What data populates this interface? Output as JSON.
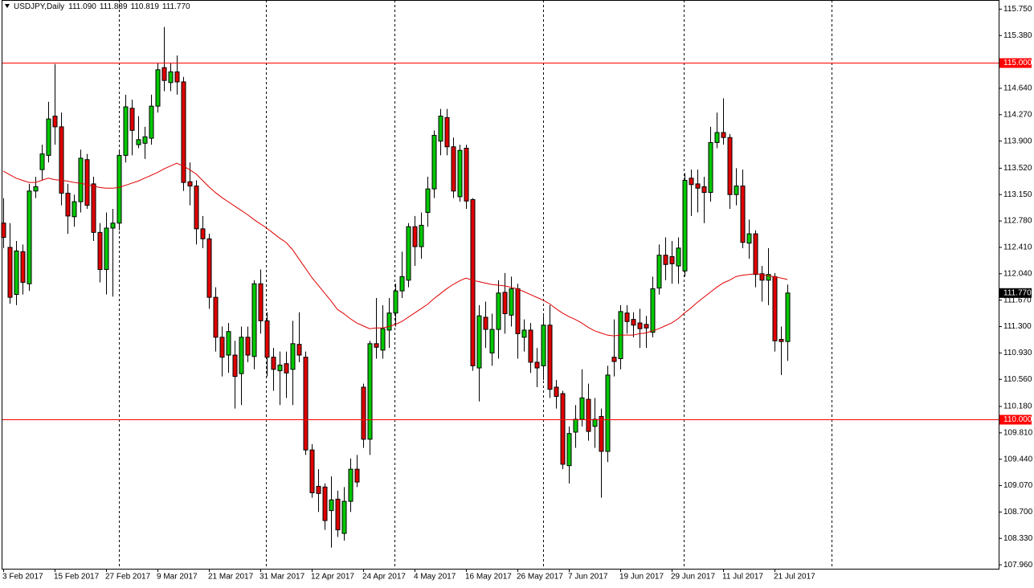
{
  "chart_data": {
    "type": "candlestick",
    "title": "USDJPY,Daily",
    "title_values": [
      "111.090",
      "111.889",
      "110.819",
      "111.770"
    ],
    "categories": [
      "3 Feb 2017",
      null,
      null,
      null,
      null,
      null,
      null,
      null,
      "15 Feb 2017",
      null,
      null,
      null,
      null,
      null,
      null,
      null,
      "27 Feb 2017",
      null,
      null,
      null,
      null,
      null,
      null,
      null,
      "9 Mar 2017",
      null,
      null,
      null,
      null,
      null,
      null,
      null,
      "21 Mar 2017",
      null,
      null,
      null,
      null,
      null,
      null,
      null,
      "31 Mar 2017",
      null,
      null,
      null,
      null,
      null,
      null,
      null,
      "12 Apr 2017",
      null,
      null,
      null,
      null,
      null,
      null,
      null,
      "24 Apr 2017",
      null,
      null,
      null,
      null,
      null,
      null,
      null,
      "4 May 2017",
      null,
      null,
      null,
      null,
      null,
      null,
      null,
      "16 May 2017",
      null,
      null,
      null,
      null,
      null,
      null,
      null,
      "26 May 2017",
      null,
      null,
      null,
      null,
      null,
      null,
      null,
      "7 Jun 2017",
      null,
      null,
      null,
      null,
      null,
      null,
      null,
      "19 Jun 2017",
      null,
      null,
      null,
      null,
      null,
      null,
      null,
      "29 Jun 2017",
      null,
      null,
      null,
      null,
      null,
      null,
      null,
      "11 Jul 2017",
      null,
      null,
      null,
      null,
      null,
      null,
      null,
      "21 Jul 2017",
      null,
      null
    ],
    "open": [
      112.75,
      112.41,
      111.75,
      112.35,
      111.9,
      113.2,
      113.5,
      113.7,
      114.25,
      114.1,
      113.17,
      112.84,
      113.05,
      113.64,
      113.3,
      112.62,
      112.1,
      112.68,
      112.75,
      113.7,
      114.36,
      113.85,
      113.87,
      113.94,
      114.39,
      114.93,
      114.72,
      114.87,
      114.73,
      113.33,
      113.27,
      112.67,
      112.53,
      111.71,
      111.15,
      110.9,
      110.9,
      110.64,
      111.15,
      110.88,
      111.9,
      111.38,
      110.87,
      110.68,
      110.78,
      110.7,
      111.05,
      110.87,
      109.57,
      109.06,
      109.05,
      108.72,
      108.88,
      108.4,
      108.85,
      109.3,
      110.45,
      109.72,
      111.06,
      110.97,
      111.25,
      111.49,
      111.8,
      111.95,
      112.7,
      112.42,
      112.9,
      113.23,
      113.9,
      114.23,
      113.82,
      113.12,
      113.8,
      113.08,
      110.72,
      111.43,
      110.93,
      111.26,
      111.78,
      111.46,
      111.83,
      111.15,
      111.25,
      110.8,
      110.75,
      111.32,
      110.45,
      110.36,
      109.35,
      109.82,
      110.0,
      110.28,
      109.9,
      110.04,
      109.55,
      110.87,
      110.85,
      111.49,
      111.4,
      111.35,
      111.33,
      111.22,
      111.84,
      112.3,
      112.28,
      112.15,
      112.08,
      113.38,
      113.3,
      113.26,
      113.18,
      113.88,
      114.02,
      113.95,
      113.15,
      113.27,
      112.47,
      112.6,
      112.04,
      111.95,
      112.0,
      111.12,
      111.09
    ],
    "high": [
      113.1,
      112.75,
      112.5,
      112.45,
      113.3,
      113.4,
      113.85,
      114.45,
      114.98,
      114.3,
      113.3,
      113.15,
      113.78,
      113.72,
      113.4,
      112.75,
      112.9,
      112.95,
      113.75,
      114.55,
      114.48,
      114.25,
      114.1,
      114.55,
      115.0,
      115.5,
      115.0,
      115.1,
      114.8,
      113.6,
      113.35,
      112.85,
      112.6,
      111.85,
      111.3,
      111.35,
      111.1,
      111.3,
      111.3,
      111.95,
      112.1,
      111.5,
      111.0,
      110.95,
      110.95,
      111.38,
      111.5,
      110.95,
      109.65,
      109.3,
      109.1,
      109.2,
      109.0,
      109.05,
      109.45,
      109.5,
      110.5,
      111.1,
      111.7,
      111.6,
      111.7,
      111.9,
      112.35,
      112.75,
      112.85,
      112.9,
      113.4,
      114.05,
      114.35,
      114.35,
      113.95,
      113.85,
      113.85,
      113.1,
      111.6,
      111.65,
      111.48,
      111.95,
      112.05,
      112.0,
      111.9,
      111.4,
      111.35,
      111.0,
      111.45,
      111.6,
      110.55,
      110.4,
      109.9,
      110.2,
      110.7,
      110.5,
      110.3,
      110.15,
      110.75,
      111.4,
      111.6,
      111.6,
      111.5,
      111.55,
      111.45,
      112.0,
      112.45,
      112.55,
      112.5,
      112.55,
      113.45,
      113.5,
      113.5,
      113.4,
      114.1,
      114.3,
      114.5,
      114.0,
      113.52,
      113.5,
      112.8,
      112.65,
      112.15,
      112.4,
      112.05,
      111.3,
      111.889
    ],
    "low": [
      112.4,
      111.62,
      111.6,
      111.75,
      111.8,
      113.1,
      113.35,
      113.6,
      113.85,
      113.0,
      112.6,
      112.7,
      112.9,
      112.95,
      112.5,
      111.92,
      111.75,
      111.72,
      112.65,
      113.6,
      113.7,
      113.8,
      113.65,
      113.85,
      114.3,
      114.6,
      114.6,
      114.55,
      113.2,
      113.0,
      112.45,
      112.4,
      111.55,
      110.95,
      110.6,
      110.65,
      110.15,
      110.2,
      110.8,
      110.7,
      111.2,
      110.6,
      110.4,
      110.2,
      110.3,
      110.2,
      110.8,
      109.5,
      108.9,
      108.7,
      108.45,
      108.2,
      108.35,
      108.3,
      108.7,
      109.05,
      109.6,
      109.5,
      110.85,
      110.85,
      111.0,
      111.3,
      111.7,
      111.85,
      112.15,
      112.25,
      112.7,
      113.1,
      113.7,
      113.7,
      113.1,
      113.05,
      112.95,
      110.68,
      110.25,
      111.0,
      110.75,
      110.85,
      111.2,
      111.3,
      110.85,
      110.95,
      110.65,
      110.45,
      110.55,
      110.3,
      110.15,
      109.3,
      109.1,
      109.6,
      109.9,
      109.7,
      109.6,
      108.9,
      109.4,
      110.6,
      110.7,
      111.2,
      111.15,
      111.0,
      111.0,
      111.15,
      111.75,
      111.95,
      111.9,
      111.9,
      112.0,
      112.85,
      112.9,
      112.75,
      113.05,
      113.8,
      113.85,
      112.95,
      113.0,
      112.4,
      112.25,
      111.85,
      111.65,
      111.6,
      110.95,
      110.62,
      110.819
    ],
    "close": [
      112.55,
      111.71,
      112.36,
      111.92,
      113.2,
      113.26,
      113.72,
      114.21,
      114.1,
      113.17,
      112.85,
      113.05,
      113.66,
      113.0,
      112.62,
      112.1,
      112.68,
      112.75,
      113.7,
      114.38,
      114.05,
      113.92,
      113.96,
      114.39,
      114.9,
      114.75,
      114.87,
      114.73,
      113.32,
      113.27,
      112.67,
      112.53,
      111.71,
      111.15,
      110.87,
      111.23,
      110.6,
      111.15,
      110.9,
      111.9,
      111.38,
      110.87,
      110.7,
      110.76,
      110.65,
      111.06,
      110.9,
      109.57,
      108.97,
      108.96,
      108.58,
      108.87,
      108.45,
      108.85,
      109.3,
      109.12,
      109.72,
      111.06,
      111.01,
      111.27,
      111.49,
      111.8,
      112.0,
      112.7,
      112.42,
      112.72,
      113.23,
      113.98,
      114.25,
      113.82,
      113.2,
      113.77,
      113.06,
      110.75,
      111.45,
      111.26,
      111.26,
      111.77,
      111.48,
      111.83,
      111.2,
      111.25,
      110.8,
      110.72,
      111.32,
      110.42,
      110.32,
      109.37,
      109.8,
      110.0,
      110.3,
      109.83,
      110.0,
      109.55,
      110.62,
      110.81,
      111.51,
      111.37,
      111.32,
      111.27,
      111.28,
      111.83,
      112.3,
      112.17,
      112.18,
      112.4,
      113.35,
      113.29,
      113.24,
      113.18,
      113.88,
      114.02,
      113.95,
      113.15,
      113.27,
      112.48,
      112.6,
      112.03,
      111.95,
      112.03,
      111.1,
      111.09,
      111.77
    ],
    "up_color": "#00c800",
    "down_color": "#e00000",
    "ma": {
      "color": "#e00000",
      "values": [
        113.48,
        113.43,
        113.38,
        113.35,
        113.32,
        113.32,
        113.35,
        113.38,
        113.36,
        113.35,
        113.34,
        113.32,
        113.31,
        113.29,
        113.27,
        113.25,
        113.24,
        113.24,
        113.25,
        113.28,
        113.31,
        113.34,
        113.38,
        113.42,
        113.46,
        113.51,
        113.55,
        113.59,
        113.55,
        113.5,
        113.44,
        113.35,
        113.26,
        113.18,
        113.11,
        113.05,
        112.99,
        112.93,
        112.87,
        112.8,
        112.74,
        112.68,
        112.61,
        112.54,
        112.48,
        112.38,
        112.25,
        112.12,
        111.99,
        111.88,
        111.77,
        111.66,
        111.54,
        111.48,
        111.41,
        111.35,
        111.31,
        111.27,
        111.28,
        111.28,
        111.3,
        111.33,
        111.37,
        111.43,
        111.49,
        111.55,
        111.61,
        111.69,
        111.76,
        111.83,
        111.89,
        111.94,
        111.98,
        111.95,
        111.93,
        111.91,
        111.89,
        111.88,
        111.87,
        111.85,
        111.83,
        111.79,
        111.75,
        111.71,
        111.67,
        111.62,
        111.55,
        111.49,
        111.44,
        111.4,
        111.35,
        111.29,
        111.24,
        111.21,
        111.18,
        111.17,
        111.18,
        111.18,
        111.18,
        111.2,
        111.21,
        111.24,
        111.27,
        111.31,
        111.35,
        111.41,
        111.49,
        111.56,
        111.64,
        111.71,
        111.78,
        111.85,
        111.91,
        111.95,
        112.0,
        112.02,
        112.03,
        112.04,
        112.03,
        112.01,
        112.0,
        111.98,
        111.96
      ]
    },
    "hlines": [
      {
        "value": 115,
        "label": "115.000",
        "color": "#ff0000"
      },
      {
        "value": 110,
        "label": "110.000",
        "color": "#ff0000"
      }
    ],
    "last_price": {
      "value": 111.77,
      "label": "111.770"
    },
    "ylim": [
      107.905,
      115.878
    ],
    "yticks": [
      {
        "value": 115.75,
        "label": "115.750"
      },
      {
        "value": 115.38,
        "label": "115.380"
      },
      {
        "value": 114.64,
        "label": "114.640"
      },
      {
        "value": 114.27,
        "label": "114.270"
      },
      {
        "value": 113.9,
        "label": "113.900"
      },
      {
        "value": 113.52,
        "label": "113.520"
      },
      {
        "value": 113.15,
        "label": "113.150"
      },
      {
        "value": 112.78,
        "label": "112.780"
      },
      {
        "value": 112.41,
        "label": "112.410"
      },
      {
        "value": 112.04,
        "label": "112.040"
      },
      {
        "value": 111.67,
        "label": "111.670"
      },
      {
        "value": 111.3,
        "label": "111.300"
      },
      {
        "value": 110.93,
        "label": "110.930"
      },
      {
        "value": 110.56,
        "label": "110.560"
      },
      {
        "value": 110.18,
        "label": "110.180"
      },
      {
        "value": 109.81,
        "label": "109.810"
      },
      {
        "value": 109.44,
        "label": "109.440"
      },
      {
        "value": 109.07,
        "label": "109.070"
      },
      {
        "value": 108.7,
        "label": "108.700"
      },
      {
        "value": 108.33,
        "label": "108.330"
      },
      {
        "value": 107.96,
        "label": "107.960"
      }
    ]
  }
}
